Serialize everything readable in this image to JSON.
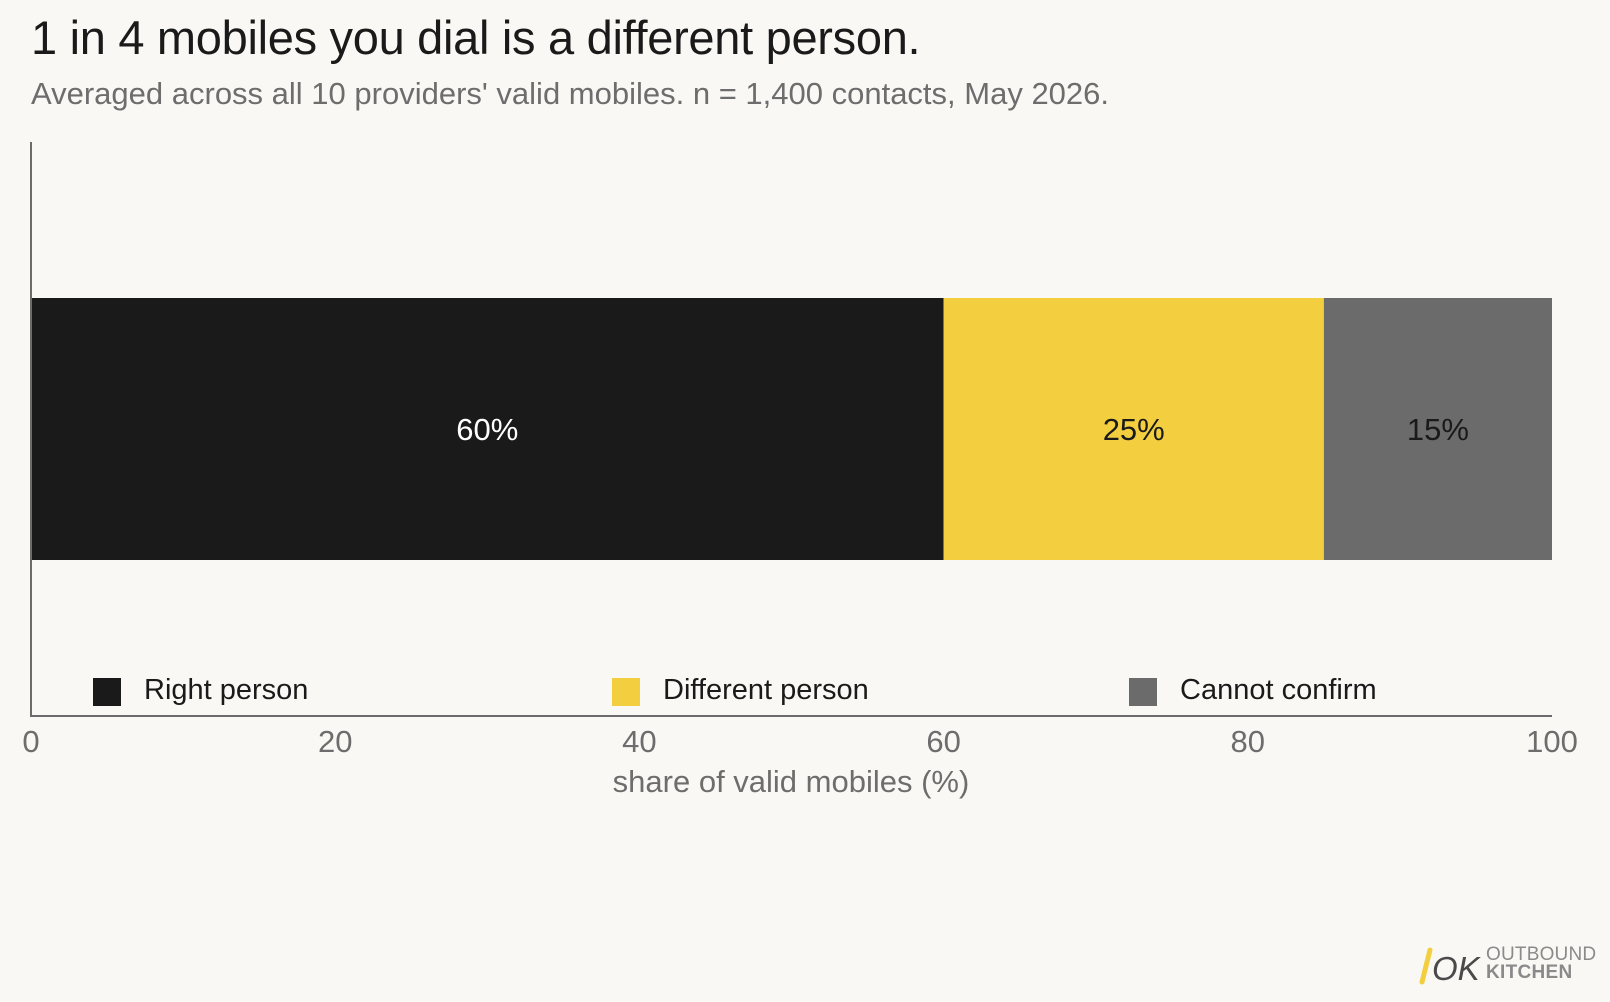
{
  "title": "1 in 4 mobiles you dial is a different person.",
  "subtitle": "Averaged across all 10 providers' valid mobiles. n = 1,400 contacts, May 2026.",
  "chart_data": {
    "type": "bar",
    "orientation": "horizontal-stacked",
    "series": [
      {
        "name": "Right person",
        "value": 60,
        "label": "60%",
        "color": "#1a1a1a",
        "label_color": "#ffffff"
      },
      {
        "name": "Different person",
        "value": 25,
        "label": "25%",
        "color": "#f3cf3f",
        "label_color": "#1a1a1a"
      },
      {
        "name": "Cannot confirm",
        "value": 15,
        "label": "15%",
        "color": "#6b6b6b",
        "label_color": "#1a1a1a"
      }
    ],
    "xlabel": "share of valid mobiles (%)",
    "xlim": [
      0,
      100
    ],
    "xticks": [
      "0",
      "20",
      "40",
      "60",
      "80",
      "100"
    ],
    "grid": false,
    "legend_placement": "bottom"
  },
  "logo": {
    "mark": "OK",
    "line1": "OUTBOUND",
    "line2": "KITCHEN"
  }
}
